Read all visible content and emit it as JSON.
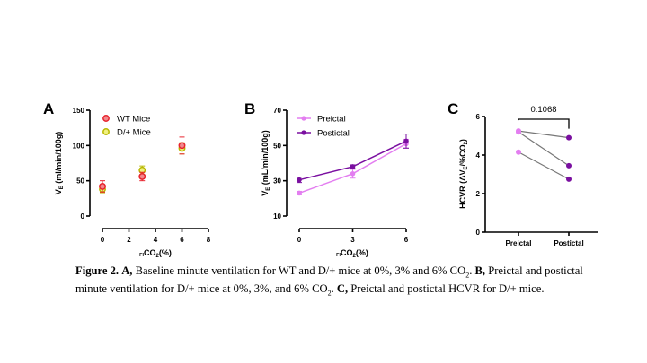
{
  "chart_data": [
    {
      "panel": "A",
      "type": "scatter",
      "title": "",
      "xlabel_sub": "FI",
      "xlabel_main": "CO",
      "xlabel_sub2": "2",
      "xlabel_tail": "(%)",
      "ylabel_main": "V",
      "ylabel_sub": "E",
      "ylabel_tail": " (ml/min/100g)",
      "xlim": [
        0,
        8
      ],
      "ylim": [
        0,
        150
      ],
      "xticks": [
        "0",
        "2",
        "4",
        "6",
        "8"
      ],
      "yticks": [
        "0",
        "50",
        "100",
        "150"
      ],
      "legend_position": "top-left",
      "series": [
        {
          "name": "WT Mice",
          "color": "#e8242e",
          "fill": "#f08a8e",
          "x": [
            0,
            3,
            6
          ],
          "y": [
            42,
            56,
            100
          ],
          "err": [
            8,
            6,
            12
          ]
        },
        {
          "name": "D/+ Mice",
          "color": "#b8b800",
          "fill": "#f0f080",
          "x": [
            0,
            3,
            6
          ],
          "y": [
            38,
            65,
            96
          ],
          "err": [
            5,
            6,
            8
          ]
        }
      ]
    },
    {
      "panel": "B",
      "type": "line",
      "xlabel_sub": "FI",
      "xlabel_main": "CO",
      "xlabel_sub2": "2",
      "xlabel_tail": "(%)",
      "ylabel_main": "V",
      "ylabel_sub": "E",
      "ylabel_tail": " (mL/min/100g)",
      "xlim": [
        0,
        6
      ],
      "ylim": [
        10,
        70
      ],
      "xticks": [
        "0",
        "3",
        "6"
      ],
      "yticks": [
        "10",
        "30",
        "50",
        "70"
      ],
      "legend_position": "top-left",
      "series": [
        {
          "name": "Preictal",
          "color": "#e37ef0",
          "x": [
            0,
            3,
            6
          ],
          "y": [
            23,
            34,
            51
          ],
          "err": [
            1,
            2.5,
            2.5
          ]
        },
        {
          "name": "Postictal",
          "color": "#7a0fa0",
          "x": [
            0,
            3,
            6
          ],
          "y": [
            30.5,
            38,
            52.5
          ],
          "err": [
            1.5,
            1,
            4
          ]
        }
      ]
    },
    {
      "panel": "C",
      "type": "scatter",
      "subtype": "paired",
      "ylabel": "HCVR (ΔVE/%CO2)",
      "ylabel_pre": "HCVR (ΔV",
      "ylabel_sub": "E",
      "ylabel_mid": "/%CO",
      "ylabel_sub2": "2",
      "ylabel_post": ")",
      "categories": [
        "Preictal",
        "Postictal"
      ],
      "ylim": [
        0,
        6
      ],
      "yticks": [
        "0",
        "2",
        "4",
        "6"
      ],
      "annotation": "0.1068",
      "colors": {
        "Preictal": "#e37ef0",
        "Postictal": "#7a0fa0",
        "line": "#777777"
      },
      "pairs": [
        {
          "preictal": 5.25,
          "postictal": 4.9
        },
        {
          "preictal": 5.2,
          "postictal": 3.45
        },
        {
          "preictal": 4.15,
          "postictal": 2.75
        }
      ]
    }
  ],
  "panel_labels": [
    "A",
    "B",
    "C"
  ],
  "caption": {
    "fig_label": "Figure 2.",
    "a_label": "A,",
    "a_text": " Baseline minute ventilation for WT and D/+ mice at 0%, 3% and 6% CO",
    "a_sub": "2",
    "a_end": ". ",
    "b_label": "B,",
    "b_text": " Preictal and postictal minute ventilation for D/+ mice at 0%, 3%, and 6% CO",
    "b_sub": "2",
    "b_end": ". ",
    "c_label": "C,",
    "c_text": " Preictal and postictal HCVR for D/+ mice."
  }
}
